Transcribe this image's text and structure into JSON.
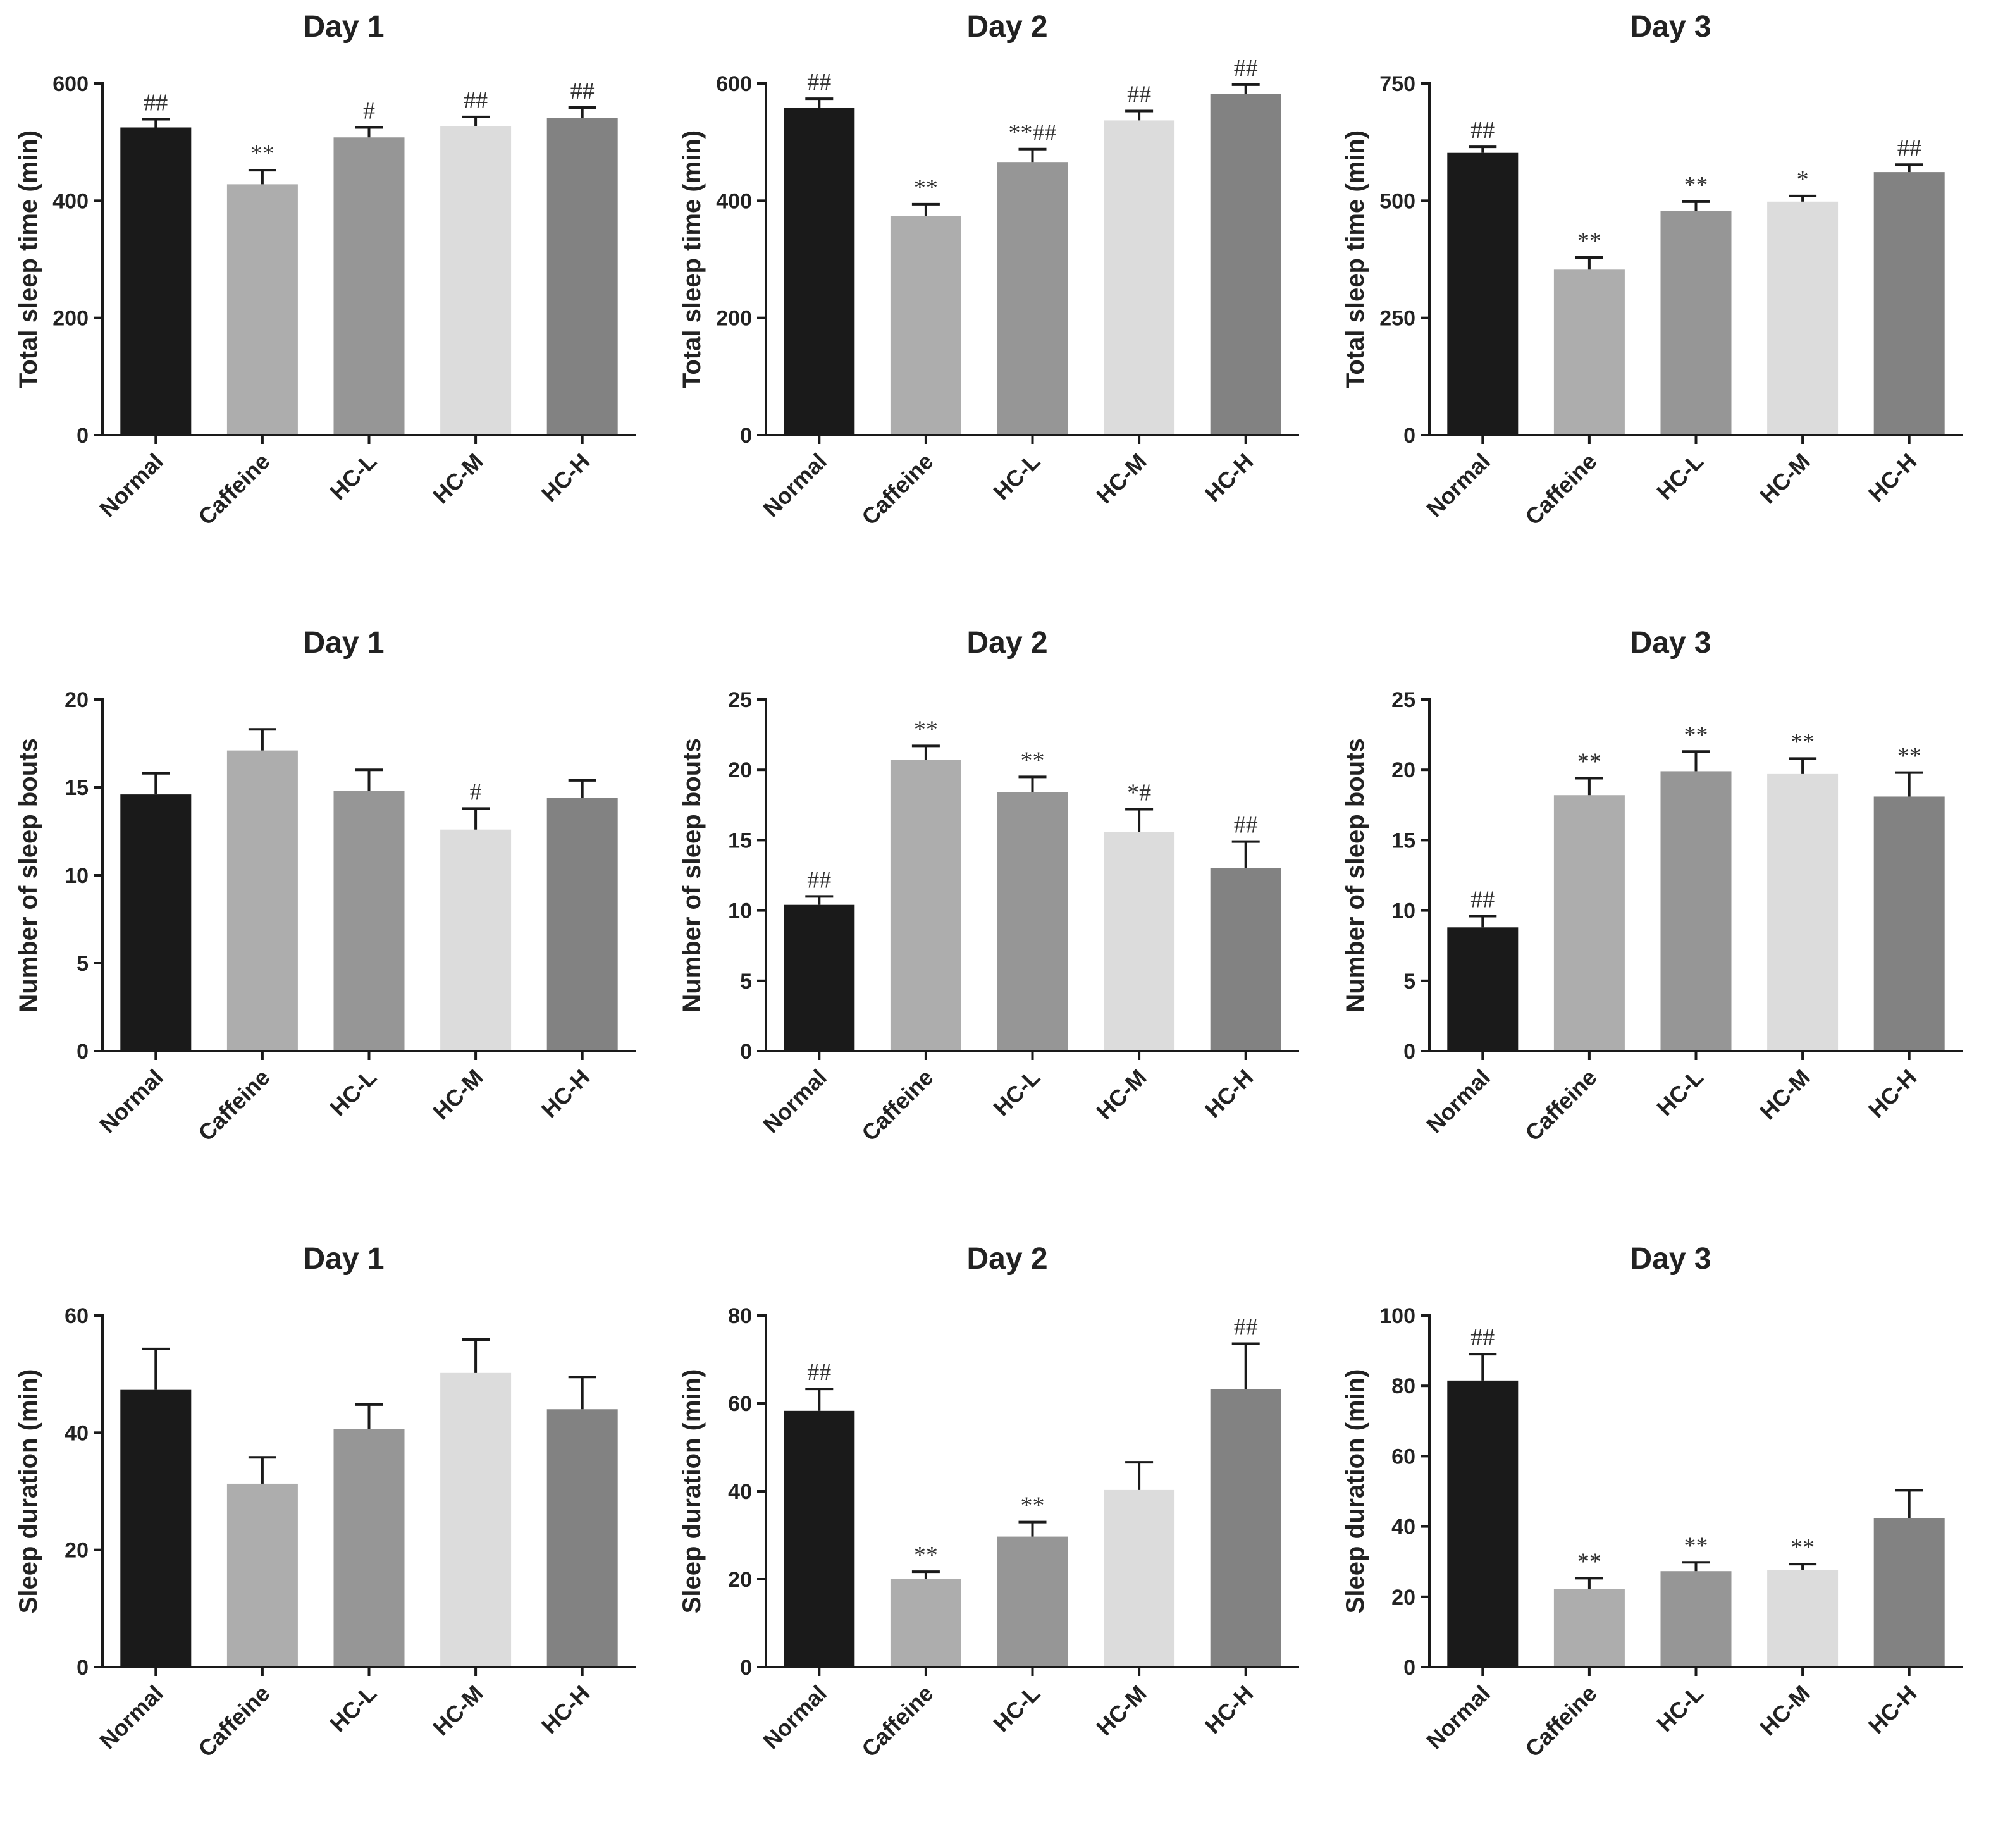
{
  "chart_data": [
    {
      "type": "bar",
      "title": "Day 1",
      "ylabel": "Total sleep time (min)",
      "categories": [
        "Normal",
        "Caffeine",
        "HC-L",
        "HC-M",
        "HC-H"
      ],
      "values": [
        525,
        428,
        508,
        527,
        541
      ],
      "errors": [
        14,
        24,
        17,
        16,
        18
      ],
      "annotations": [
        "##",
        "**",
        "#",
        "##",
        "##"
      ],
      "colors": [
        "#1a1a1a",
        "#adadad",
        "#969696",
        "#dcdcdc",
        "#828282"
      ],
      "ylim": [
        0,
        600
      ],
      "yticks": [
        0,
        200,
        400,
        600
      ]
    },
    {
      "type": "bar",
      "title": "Day 2",
      "ylabel": "Total sleep time (min)",
      "categories": [
        "Normal",
        "Caffeine",
        "HC-L",
        "HC-M",
        "HC-H"
      ],
      "values": [
        559,
        374,
        466,
        537,
        582
      ],
      "errors": [
        15,
        20,
        22,
        16,
        16
      ],
      "annotations": [
        "##",
        "**",
        "**##",
        "##",
        "##"
      ],
      "colors": [
        "#1a1a1a",
        "#adadad",
        "#969696",
        "#dcdcdc",
        "#828282"
      ],
      "ylim": [
        0,
        600
      ],
      "yticks": [
        0,
        200,
        400,
        600
      ]
    },
    {
      "type": "bar",
      "title": "Day 3",
      "ylabel": "Total sleep time (min)",
      "categories": [
        "Normal",
        "Caffeine",
        "HC-L",
        "HC-M",
        "HC-H"
      ],
      "values": [
        602,
        353,
        478,
        498,
        561
      ],
      "errors": [
        13,
        26,
        20,
        12,
        16
      ],
      "annotations": [
        "##",
        "**",
        "**",
        "*",
        "##"
      ],
      "colors": [
        "#1a1a1a",
        "#adadad",
        "#969696",
        "#dcdcdc",
        "#828282"
      ],
      "ylim": [
        0,
        750
      ],
      "yticks": [
        0,
        250,
        500,
        750
      ]
    },
    {
      "type": "bar",
      "title": "Day 1",
      "ylabel": "Number of sleep bouts",
      "categories": [
        "Normal",
        "Caffeine",
        "HC-L",
        "HC-M",
        "HC-H"
      ],
      "values": [
        14.6,
        17.1,
        14.8,
        12.6,
        14.4
      ],
      "errors": [
        1.2,
        1.2,
        1.2,
        1.2,
        1.0
      ],
      "annotations": [
        "",
        "",
        "",
        "#",
        ""
      ],
      "colors": [
        "#1a1a1a",
        "#adadad",
        "#969696",
        "#dcdcdc",
        "#828282"
      ],
      "ylim": [
        0,
        20
      ],
      "yticks": [
        0,
        5,
        10,
        15,
        20
      ]
    },
    {
      "type": "bar",
      "title": "Day 2",
      "ylabel": "Number of sleep bouts",
      "categories": [
        "Normal",
        "Caffeine",
        "HC-L",
        "HC-M",
        "HC-H"
      ],
      "values": [
        10.4,
        20.7,
        18.4,
        15.6,
        13.0
      ],
      "errors": [
        0.6,
        1.0,
        1.1,
        1.6,
        1.9
      ],
      "annotations": [
        "##",
        "**",
        "**",
        "*#",
        "##"
      ],
      "colors": [
        "#1a1a1a",
        "#adadad",
        "#969696",
        "#dcdcdc",
        "#828282"
      ],
      "ylim": [
        0,
        25
      ],
      "yticks": [
        0,
        5,
        10,
        15,
        20,
        25
      ]
    },
    {
      "type": "bar",
      "title": "Day 3",
      "ylabel": "Number of sleep bouts",
      "categories": [
        "Normal",
        "Caffeine",
        "HC-L",
        "HC-M",
        "HC-H"
      ],
      "values": [
        8.8,
        18.2,
        19.9,
        19.7,
        18.1
      ],
      "errors": [
        0.8,
        1.2,
        1.4,
        1.1,
        1.7
      ],
      "annotations": [
        "##",
        "**",
        "**",
        "**",
        "**"
      ],
      "colors": [
        "#1a1a1a",
        "#adadad",
        "#969696",
        "#dcdcdc",
        "#828282"
      ],
      "ylim": [
        0,
        25
      ],
      "yticks": [
        0,
        5,
        10,
        15,
        20,
        25
      ]
    },
    {
      "type": "bar",
      "title": "Day 1",
      "ylabel": "Sleep duration (min)",
      "categories": [
        "Normal",
        "Caffeine",
        "HC-L",
        "HC-M",
        "HC-H"
      ],
      "values": [
        47.3,
        31.3,
        40.6,
        50.2,
        44.0
      ],
      "errors": [
        7.0,
        4.5,
        4.2,
        5.7,
        5.5
      ],
      "annotations": [
        "",
        "",
        "",
        "",
        ""
      ],
      "colors": [
        "#1a1a1a",
        "#adadad",
        "#969696",
        "#dcdcdc",
        "#828282"
      ],
      "ylim": [
        0,
        60
      ],
      "yticks": [
        0,
        20,
        40,
        60
      ]
    },
    {
      "type": "bar",
      "title": "Day 2",
      "ylabel": "Sleep duration (min)",
      "categories": [
        "Normal",
        "Caffeine",
        "HC-L",
        "HC-M",
        "HC-H"
      ],
      "values": [
        58.3,
        20.0,
        29.7,
        40.3,
        63.3
      ],
      "errors": [
        5.0,
        1.7,
        3.3,
        6.3,
        10.3
      ],
      "annotations": [
        "##",
        "**",
        "**",
        "",
        "##"
      ],
      "colors": [
        "#1a1a1a",
        "#adadad",
        "#969696",
        "#dcdcdc",
        "#828282"
      ],
      "ylim": [
        0,
        80
      ],
      "yticks": [
        0,
        20,
        40,
        60,
        80
      ]
    },
    {
      "type": "bar",
      "title": "Day 3",
      "ylabel": "Sleep duration (min)",
      "categories": [
        "Normal",
        "Caffeine",
        "HC-L",
        "HC-M",
        "HC-H"
      ],
      "values": [
        81.5,
        22.3,
        27.3,
        27.7,
        42.3
      ],
      "errors": [
        7.5,
        3.0,
        2.5,
        1.6,
        8.0
      ],
      "annotations": [
        "##",
        "**",
        "**",
        "**",
        ""
      ],
      "colors": [
        "#1a1a1a",
        "#adadad",
        "#969696",
        "#dcdcdc",
        "#828282"
      ],
      "ylim": [
        0,
        100
      ],
      "yticks": [
        0,
        20,
        40,
        60,
        80,
        100
      ]
    }
  ]
}
